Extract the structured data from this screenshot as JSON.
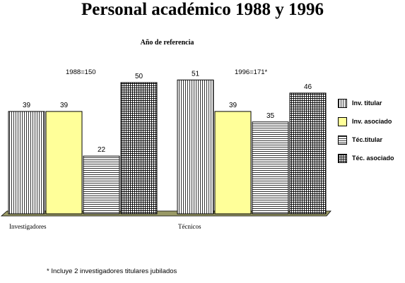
{
  "chart_data": {
    "type": "bar",
    "title": "Personal académico 1988 y 1996",
    "subtitle": "Año de referencia",
    "categories": [
      "Investigadores",
      "Técnicos"
    ],
    "series": [
      {
        "name": "Inv. titular",
        "values": [
          39,
          51
        ],
        "pattern": "vertical-lines",
        "color": "#ffffff"
      },
      {
        "name": "Inv. asociado",
        "values": [
          39,
          39
        ],
        "pattern": "solid",
        "color": "#ffff99"
      },
      {
        "name": "Téc.titular",
        "values": [
          22,
          35
        ],
        "pattern": "horizontal-lines",
        "color": "#ffffff"
      },
      {
        "name": "Téc. asociado",
        "values": [
          50,
          46
        ],
        "pattern": "grid",
        "color": "#ffffff"
      }
    ],
    "group_totals": [
      "1988=150",
      "1996=171*"
    ],
    "footnote": "* Incluye 2 investigadores titulares jubilados",
    "ylim": [
      0,
      50
    ],
    "grid": false,
    "legend": "right",
    "floor_color": "#999966"
  }
}
